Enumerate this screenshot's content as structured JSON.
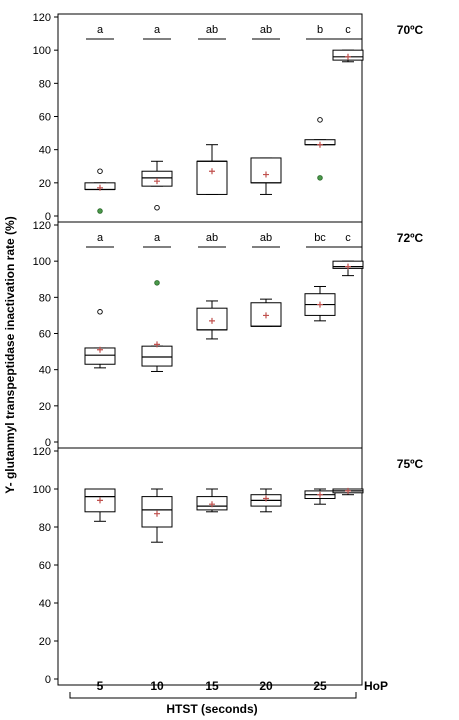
{
  "chart_data": {
    "type": "box",
    "ylabel": "Y- glutanmyl transpeptidase inactivation rate (%)",
    "xlabel": "HTST (seconds)",
    "categories": [
      "5",
      "10",
      "15",
      "20",
      "25",
      "HoP"
    ],
    "ylim": [
      0,
      120
    ],
    "yticks": [
      0,
      20,
      40,
      60,
      80,
      100,
      120
    ],
    "colors": {
      "mean": "#c0504d",
      "outlier_filled": "#4a9a4a",
      "outline": "#000000"
    },
    "panels": [
      {
        "label": "70ºC",
        "letters": [
          "a",
          "a",
          "ab",
          "ab",
          "b",
          "c"
        ],
        "boxes": [
          {
            "min": 16,
            "q1": 16,
            "median": 16,
            "q3": 20,
            "max": 20,
            "mean": 17,
            "outliers": [
              {
                "y": 27,
                "filled": false
              },
              {
                "y": 3,
                "filled": true
              }
            ]
          },
          {
            "min": 18,
            "q1": 18,
            "median": 23,
            "q3": 27,
            "max": 33,
            "mean": 21,
            "outliers": [
              {
                "y": 5,
                "filled": false
              }
            ]
          },
          {
            "min": 13,
            "q1": 13,
            "median": 33,
            "q3": 33,
            "max": 43,
            "mean": 27,
            "outliers": []
          },
          {
            "min": 13,
            "q1": 20,
            "median": 20,
            "q3": 35,
            "max": 35,
            "mean": 25,
            "outliers": []
          },
          {
            "min": 43,
            "q1": 43,
            "median": 43,
            "q3": 46,
            "max": 46,
            "mean": 43,
            "outliers": [
              {
                "y": 58,
                "filled": false
              },
              {
                "y": 23,
                "filled": true
              }
            ]
          },
          {
            "min": 93,
            "q1": 94,
            "median": 96,
            "q3": 100,
            "max": 100,
            "mean": 96,
            "outliers": []
          }
        ]
      },
      {
        "label": "72ºC",
        "letters": [
          "a",
          "a",
          "ab",
          "ab",
          "bc",
          "c"
        ],
        "boxes": [
          {
            "min": 41,
            "q1": 43,
            "median": 48,
            "q3": 52,
            "max": 52,
            "mean": 51,
            "outliers": [
              {
                "y": 72,
                "filled": false
              }
            ]
          },
          {
            "min": 39,
            "q1": 42,
            "median": 47,
            "q3": 53,
            "max": 53,
            "mean": 54,
            "outliers": [
              {
                "y": 88,
                "filled": true
              }
            ]
          },
          {
            "min": 57,
            "q1": 62,
            "median": 62,
            "q3": 74,
            "max": 78,
            "mean": 67,
            "outliers": []
          },
          {
            "min": 64,
            "q1": 64,
            "median": 64,
            "q3": 77,
            "max": 79,
            "mean": 70,
            "outliers": []
          },
          {
            "min": 67,
            "q1": 70,
            "median": 76,
            "q3": 82,
            "max": 86,
            "mean": 76,
            "outliers": []
          },
          {
            "min": 92,
            "q1": 96,
            "median": 97,
            "q3": 100,
            "max": 100,
            "mean": 97,
            "outliers": []
          }
        ]
      },
      {
        "label": "75ºC",
        "letters": [],
        "boxes": [
          {
            "min": 83,
            "q1": 88,
            "median": 96,
            "q3": 100,
            "max": 100,
            "mean": 94,
            "outliers": []
          },
          {
            "min": 72,
            "q1": 80,
            "median": 89,
            "q3": 96,
            "max": 100,
            "mean": 87,
            "outliers": []
          },
          {
            "min": 88,
            "q1": 89,
            "median": 91,
            "q3": 96,
            "max": 100,
            "mean": 92,
            "outliers": []
          },
          {
            "min": 88,
            "q1": 91,
            "median": 94,
            "q3": 97,
            "max": 100,
            "mean": 95,
            "outliers": []
          },
          {
            "min": 92,
            "q1": 95,
            "median": 97,
            "q3": 99,
            "max": 100,
            "mean": 97,
            "outliers": []
          },
          {
            "min": 97,
            "q1": 98,
            "median": 99,
            "q3": 100,
            "max": 100,
            "mean": 99,
            "outliers": []
          }
        ]
      }
    ]
  }
}
